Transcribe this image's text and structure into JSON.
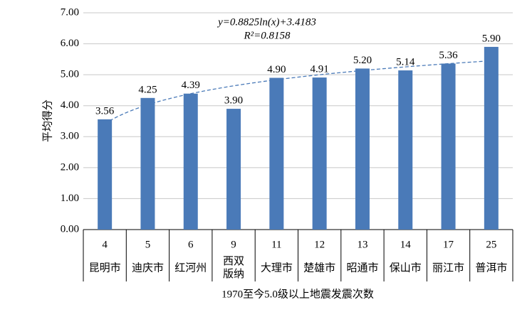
{
  "chart_data": {
    "type": "bar",
    "x_counts": [
      4,
      5,
      6,
      9,
      11,
      12,
      13,
      14,
      17,
      25
    ],
    "categories": [
      "昆明市",
      "迪庆市",
      "红河州",
      "西双\n版纳",
      "大理市",
      "楚雄市",
      "昭通市",
      "保山市",
      "丽江市",
      "普洱市"
    ],
    "values": [
      3.56,
      4.25,
      4.39,
      3.9,
      4.9,
      4.91,
      5.2,
      5.14,
      5.36,
      5.9
    ],
    "value_labels": [
      "3.56",
      "4.25",
      "4.39",
      "3.90",
      "4.90",
      "4.91",
      "5.20",
      "5.14",
      "5.36",
      "5.90"
    ],
    "color": "#4a7ab8",
    "ylim": [
      0,
      7
    ],
    "yticks": [
      {
        "value": 0,
        "label": "0.00"
      },
      {
        "value": 1,
        "label": "1.00"
      },
      {
        "value": 2,
        "label": "2.00"
      },
      {
        "value": 3,
        "label": "3.00"
      },
      {
        "value": 4,
        "label": "4.00"
      },
      {
        "value": 5,
        "label": "5.00"
      },
      {
        "value": 6,
        "label": "6.00"
      },
      {
        "value": 7,
        "label": "7.00"
      }
    ],
    "grid": true,
    "x_label": "1970至今5.0级以上地震发震次数",
    "y_label": "平均得分",
    "trendline": {
      "type": "log",
      "a": 0.8825,
      "b": 3.4183,
      "equation": "y=0.8825ln(x)+3.4183",
      "r2_label": "R²=0.8158"
    }
  }
}
